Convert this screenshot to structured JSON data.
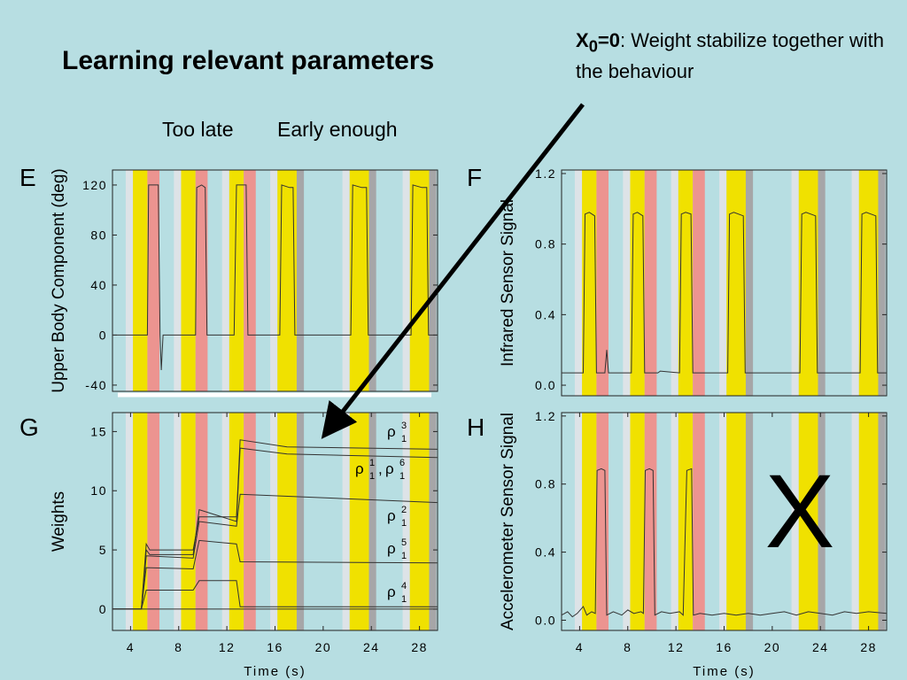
{
  "title": "Learning relevant parameters",
  "annotation": {
    "bold": "X",
    "sub": "0",
    "bold_tail": "=0",
    "text": ": Weight stabilize together with the behaviour"
  },
  "headers": {
    "too_late": "Too late",
    "early_enough": "Early enough"
  },
  "panels": {
    "E": "E",
    "F": "F",
    "G": "G",
    "H": "H"
  },
  "x_mark": "X",
  "colors": {
    "background": "#b7dee2",
    "yellow": "#f0e100",
    "pink": "#ec9490",
    "light_gray": "#dde3e7",
    "dark_gray": "#a6a6a8",
    "trace": "#333333"
  },
  "stimulus_bands": [
    {
      "light_gray": [
        3.6,
        4.2
      ],
      "yellow": [
        4.2,
        5.4
      ],
      "pink": [
        5.4,
        6.4
      ]
    },
    {
      "light_gray": [
        7.6,
        8.2
      ],
      "yellow": [
        8.2,
        9.4
      ],
      "pink": [
        9.4,
        10.4
      ]
    },
    {
      "light_gray": [
        11.6,
        12.2
      ],
      "yellow": [
        12.2,
        13.4
      ],
      "pink": [
        13.4,
        14.4
      ]
    },
    {
      "light_gray": [
        15.6,
        16.2
      ],
      "yellow": [
        16.2,
        17.8
      ],
      "dark_gray": [
        17.8,
        18.4
      ]
    },
    {
      "light_gray": [
        21.6,
        22.2
      ],
      "yellow": [
        22.2,
        23.8
      ],
      "dark_gray": [
        23.8,
        24.4
      ]
    },
    {
      "light_gray": [
        26.6,
        27.2
      ],
      "yellow": [
        27.2,
        28.8
      ],
      "dark_gray": [
        28.8,
        29.4
      ]
    }
  ],
  "chart_data": [
    {
      "panel": "E",
      "type": "line",
      "xlabel": "",
      "ylabel": "Upper Body Component (deg)",
      "xlim": [
        2.5,
        29.5
      ],
      "ylim": [
        -45,
        132
      ],
      "yticks": [
        "120",
        "80",
        "40",
        "0",
        "-40"
      ],
      "ytick_values": [
        120,
        80,
        40,
        0,
        -40
      ],
      "series": [
        {
          "x": [
            2.5,
            5.4,
            5.5,
            5.9,
            6.3,
            6.45,
            6.55,
            6.7,
            9.0,
            9.4,
            9.5,
            9.9,
            10.2,
            10.35,
            10.5,
            12.6,
            12.8,
            13.6,
            13.75,
            13.9,
            16.4,
            16.55,
            17.2,
            17.5,
            17.65,
            17.8,
            22.3,
            22.45,
            23.2,
            23.6,
            23.75,
            23.9,
            27.3,
            27.45,
            28.2,
            28.6,
            28.75,
            28.9,
            29.5
          ],
          "y": [
            0,
            0,
            120,
            120,
            120,
            0,
            -28,
            0,
            0,
            0,
            118,
            120,
            118,
            0,
            0,
            0,
            120,
            120,
            0,
            0,
            0,
            120,
            118,
            118,
            0,
            0,
            0,
            120,
            118,
            118,
            0,
            0,
            0,
            120,
            118,
            118,
            0,
            0,
            0
          ]
        }
      ]
    },
    {
      "panel": "F",
      "type": "line",
      "xlabel": "",
      "ylabel": "Infrared Sensor Signal",
      "xlim": [
        2.5,
        29.5
      ],
      "ylim": [
        -0.06,
        1.22
      ],
      "yticks": [
        "1.2",
        "0.8",
        "0.4",
        "0.0"
      ],
      "ytick_values": [
        1.2,
        0.8,
        0.4,
        0.0
      ],
      "series": [
        {
          "x": [
            2.5,
            4.3,
            4.45,
            4.8,
            5.25,
            5.4,
            5.8,
            6.1,
            6.25,
            6.4,
            8.3,
            8.45,
            8.8,
            9.25,
            9.4,
            10.5,
            10.7,
            12.3,
            12.45,
            12.8,
            13.25,
            13.4,
            16.3,
            16.45,
            16.8,
            17.6,
            17.75,
            22.3,
            22.45,
            22.8,
            23.6,
            23.75,
            27.3,
            27.45,
            27.8,
            28.6,
            28.75,
            29.5
          ],
          "y": [
            0.07,
            0.07,
            0.97,
            0.98,
            0.96,
            0.07,
            0.07,
            0.07,
            0.2,
            0.07,
            0.07,
            0.97,
            0.98,
            0.96,
            0.07,
            0.07,
            0.08,
            0.07,
            0.97,
            0.98,
            0.97,
            0.07,
            0.07,
            0.97,
            0.98,
            0.96,
            0.07,
            0.07,
            0.97,
            0.98,
            0.96,
            0.07,
            0.07,
            0.97,
            0.98,
            0.96,
            0.07,
            0.07
          ]
        }
      ]
    },
    {
      "panel": "G",
      "type": "line",
      "xlabel": "Time (s)",
      "ylabel": "Weights",
      "xlim": [
        2.5,
        29.5
      ],
      "ylim": [
        -1.8,
        16.6
      ],
      "xticks": [
        "4",
        "8",
        "12",
        "16",
        "20",
        "24",
        "28"
      ],
      "xtick_values": [
        4,
        8,
        12,
        16,
        20,
        24,
        28
      ],
      "yticks": [
        "15",
        "10",
        "5",
        "0"
      ],
      "ytick_values": [
        15,
        10,
        5,
        0
      ],
      "series": [
        {
          "name": "ρ",
          "sub": "1",
          "sup": "3",
          "x": [
            2.5,
            4.9,
            5.3,
            5.6,
            9.2,
            9.7,
            12.8,
            13.1,
            17.0,
            29.5
          ],
          "y": [
            0,
            0,
            5.5,
            5.0,
            5.0,
            7.8,
            7.8,
            14.3,
            13.7,
            13.5
          ]
        },
        {
          "name": "ρ",
          "sub": "1",
          "sup": "1",
          "name2": "ρ",
          "sub2": "1",
          "sup2": "6",
          "x": [
            2.5,
            4.9,
            5.3,
            5.6,
            9.2,
            9.7,
            12.8,
            13.1,
            17.0,
            29.5
          ],
          "y": [
            0,
            0,
            5.0,
            4.6,
            4.6,
            8.4,
            7.4,
            13.6,
            13.1,
            12.8
          ]
        },
        {
          "name": "ρ",
          "sub": "1",
          "sup": "2",
          "x": [
            2.5,
            4.9,
            5.3,
            9.2,
            9.7,
            12.8,
            13.1,
            29.5
          ],
          "y": [
            0,
            0,
            4.5,
            4.3,
            7.4,
            7.0,
            9.7,
            9.0
          ]
        },
        {
          "name": "ρ",
          "sub": "1",
          "sup": "5",
          "x": [
            2.5,
            4.9,
            5.3,
            9.2,
            9.7,
            12.8,
            13.1,
            29.5
          ],
          "y": [
            0,
            0,
            3.5,
            3.4,
            5.8,
            5.5,
            4.0,
            3.9
          ]
        },
        {
          "name": "ρ",
          "sub": "1",
          "sup": "4",
          "x": [
            2.5,
            4.9,
            5.3,
            9.2,
            9.7,
            12.8,
            13.1,
            29.5
          ],
          "y": [
            0,
            0,
            1.6,
            1.6,
            2.4,
            2.4,
            0.2,
            0.2
          ]
        },
        {
          "x": [
            2.5,
            29.5
          ],
          "y": [
            0,
            0
          ]
        }
      ]
    },
    {
      "panel": "H",
      "type": "line",
      "xlabel": "Time (s)",
      "ylabel": "Accelerometer Sensor Signal",
      "xlim": [
        2.5,
        29.5
      ],
      "ylim": [
        -0.06,
        1.22
      ],
      "xticks": [
        "4",
        "8",
        "12",
        "16",
        "20",
        "24",
        "28"
      ],
      "xtick_values": [
        4,
        8,
        12,
        16,
        20,
        24,
        28
      ],
      "yticks": [
        "1.2",
        "0.8",
        "0.4",
        "0.0"
      ],
      "ytick_values": [
        1.2,
        0.8,
        0.4,
        0.0
      ],
      "series": [
        {
          "x": [
            2.5,
            3.0,
            3.4,
            3.8,
            4.3,
            4.6,
            5.0,
            5.3,
            5.45,
            5.8,
            6.1,
            6.25,
            6.8,
            7.5,
            8.0,
            8.5,
            9.1,
            9.3,
            9.45,
            9.8,
            10.1,
            10.25,
            10.8,
            11.5,
            12.3,
            12.6,
            12.9,
            13.3,
            13.45,
            14.0,
            15.0,
            16.0,
            17.0,
            18.0,
            19.0,
            20.0,
            21.0,
            22.0,
            23.0,
            24.0,
            25.0,
            26.0,
            27.0,
            28.0,
            29.5
          ],
          "y": [
            0.03,
            0.05,
            0.02,
            0.04,
            0.08,
            0.03,
            0.05,
            0.04,
            0.88,
            0.89,
            0.88,
            0.03,
            0.05,
            0.03,
            0.06,
            0.04,
            0.05,
            0.04,
            0.88,
            0.89,
            0.88,
            0.03,
            0.05,
            0.04,
            0.05,
            0.03,
            0.88,
            0.89,
            0.03,
            0.04,
            0.03,
            0.04,
            0.03,
            0.04,
            0.03,
            0.04,
            0.05,
            0.03,
            0.05,
            0.04,
            0.03,
            0.05,
            0.04,
            0.05,
            0.04
          ]
        }
      ]
    }
  ]
}
